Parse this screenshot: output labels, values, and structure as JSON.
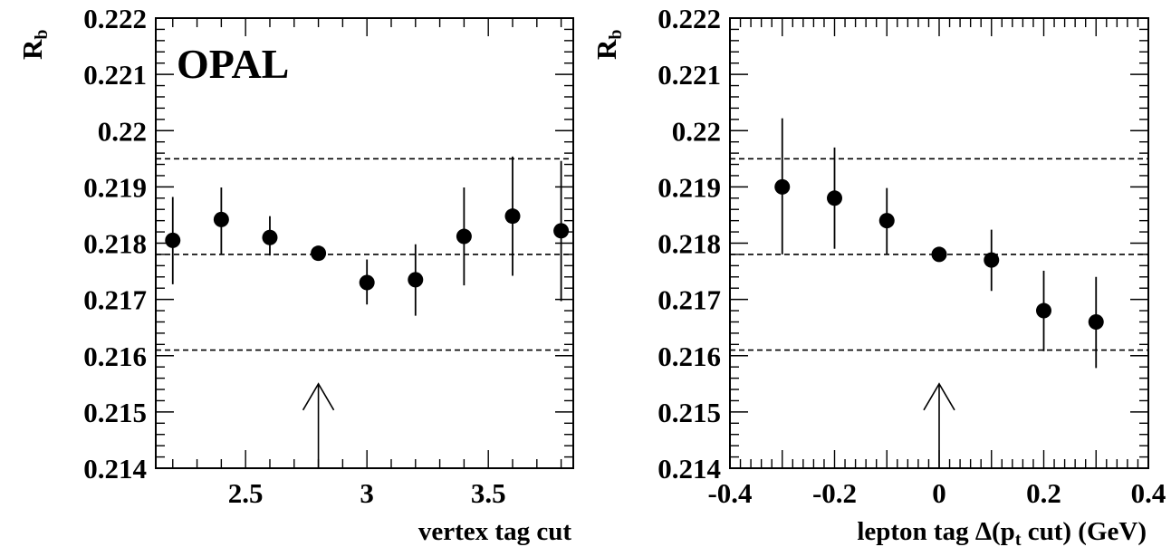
{
  "chart_data": [
    {
      "type": "scatter",
      "experiment_label": "OPAL",
      "ylabel_main": "R",
      "ylabel_sub": "b",
      "xlabel": "vertex tag cut",
      "xlim": [
        2.13,
        3.85
      ],
      "ylim": [
        0.214,
        0.222
      ],
      "x_ticks": [
        2.5,
        3,
        3.5
      ],
      "x_tick_labels": [
        "2.5",
        "3",
        "3.5"
      ],
      "y_ticks": [
        0.214,
        0.215,
        0.216,
        0.217,
        0.218,
        0.219,
        0.22,
        0.221,
        0.222
      ],
      "y_tick_labels": [
        "0.214",
        "0.215",
        "0.216",
        "0.217",
        "0.218",
        "0.219",
        "0.22",
        "0.221",
        "0.222"
      ],
      "reference_lines": [
        0.2161,
        0.2178,
        0.2195
      ],
      "arrow_at_x": 2.8,
      "arrow_tip_y": 0.2155,
      "points": [
        {
          "x": 2.2,
          "y": 0.21805,
          "err_low": 0.21727,
          "err_high": 0.21882
        },
        {
          "x": 2.4,
          "y": 0.21842,
          "err_low": 0.2178,
          "err_high": 0.21899
        },
        {
          "x": 2.6,
          "y": 0.2181,
          "err_low": 0.21778,
          "err_high": 0.21848
        },
        {
          "x": 2.8,
          "y": 0.21782,
          "err_low": 0.21782,
          "err_high": 0.21782
        },
        {
          "x": 3.0,
          "y": 0.2173,
          "err_low": 0.21691,
          "err_high": 0.21771
        },
        {
          "x": 3.2,
          "y": 0.21735,
          "err_low": 0.21671,
          "err_high": 0.21798
        },
        {
          "x": 3.4,
          "y": 0.21812,
          "err_low": 0.21725,
          "err_high": 0.21899
        },
        {
          "x": 3.6,
          "y": 0.21848,
          "err_low": 0.21742,
          "err_high": 0.21954
        },
        {
          "x": 3.8,
          "y": 0.21822,
          "err_low": 0.21697,
          "err_high": 0.21946
        }
      ]
    },
    {
      "type": "scatter",
      "ylabel_main": "R",
      "ylabel_sub": "b",
      "xlabel": "lepton tag Δ(p",
      "xlabel_sub": "t",
      "xlabel_end": " cut) (GeV)",
      "xlim": [
        -0.4,
        0.4
      ],
      "ylim": [
        0.214,
        0.222
      ],
      "x_ticks": [
        -0.4,
        -0.2,
        0,
        0.2,
        0.4
      ],
      "x_tick_labels": [
        "-0.4",
        "-0.2",
        "0",
        "0.2",
        "0.4"
      ],
      "y_ticks": [
        0.214,
        0.215,
        0.216,
        0.217,
        0.218,
        0.219,
        0.22,
        0.221,
        0.222
      ],
      "y_tick_labels": [
        "0.214",
        "0.215",
        "0.216",
        "0.217",
        "0.218",
        "0.219",
        "0.22",
        "0.221",
        "0.222"
      ],
      "reference_lines": [
        0.2161,
        0.2178,
        0.2195
      ],
      "arrow_at_x": 0,
      "arrow_tip_y": 0.2155,
      "points": [
        {
          "x": -0.3,
          "y": 0.219,
          "err_low": 0.2178,
          "err_high": 0.22022
        },
        {
          "x": -0.2,
          "y": 0.2188,
          "err_low": 0.2179,
          "err_high": 0.2197
        },
        {
          "x": -0.1,
          "y": 0.2184,
          "err_low": 0.2178,
          "err_high": 0.21898
        },
        {
          "x": 0.0,
          "y": 0.2178,
          "err_low": 0.2178,
          "err_high": 0.2178
        },
        {
          "x": 0.1,
          "y": 0.2177,
          "err_low": 0.21715,
          "err_high": 0.21824
        },
        {
          "x": 0.2,
          "y": 0.2168,
          "err_low": 0.21608,
          "err_high": 0.21751
        },
        {
          "x": 0.3,
          "y": 0.2166,
          "err_low": 0.21578,
          "err_high": 0.2174
        }
      ]
    }
  ]
}
